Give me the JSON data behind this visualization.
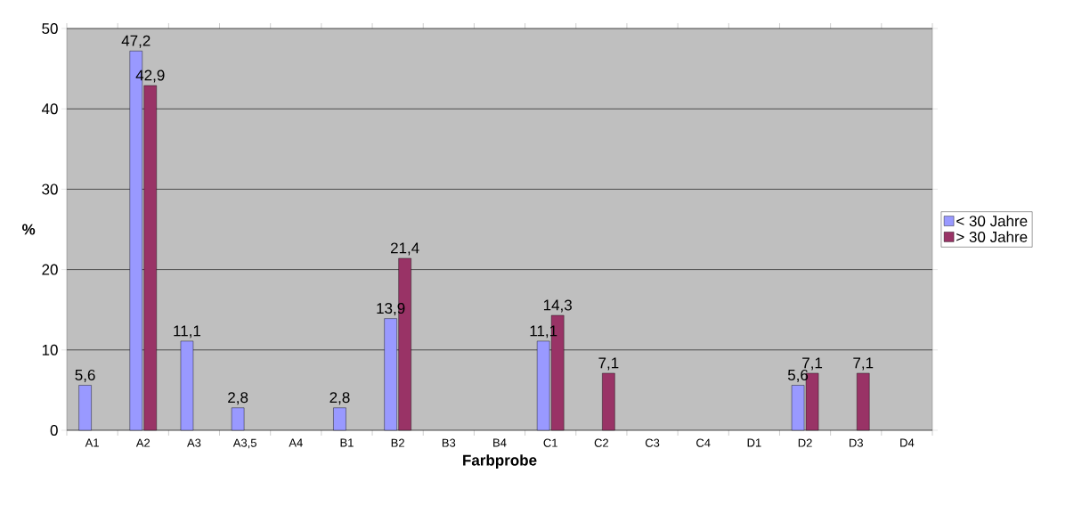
{
  "chart_data": {
    "type": "bar",
    "xlabel": "Farbprobe",
    "ylabel": "%",
    "categories": [
      "A1",
      "A2",
      "A3",
      "A3,5",
      "A4",
      "B1",
      "B2",
      "B3",
      "B4",
      "C1",
      "C2",
      "C3",
      "C4",
      "D1",
      "D2",
      "D3",
      "D4"
    ],
    "series": [
      {
        "name": "< 30 Jahre",
        "color": "#9999ff",
        "values": [
          5.6,
          47.2,
          11.1,
          2.8,
          null,
          2.8,
          13.9,
          null,
          null,
          11.1,
          null,
          null,
          null,
          null,
          5.6,
          null,
          null
        ],
        "value_labels": [
          "5,6",
          "47,2",
          "11,1",
          "2,8",
          null,
          "2,8",
          "13,9",
          null,
          null,
          "11,1",
          null,
          null,
          null,
          null,
          "5,6",
          null,
          null
        ]
      },
      {
        "name": "> 30 Jahre",
        "color": "#993366",
        "values": [
          null,
          42.9,
          null,
          null,
          null,
          null,
          21.4,
          null,
          null,
          14.3,
          7.1,
          null,
          null,
          null,
          7.1,
          7.1,
          null
        ],
        "value_labels": [
          null,
          "42,9",
          null,
          null,
          null,
          null,
          "21,4",
          null,
          null,
          "14,3",
          "7,1",
          null,
          null,
          null,
          "7,1",
          "7,1",
          null
        ]
      }
    ],
    "ylim": [
      0,
      50
    ],
    "yticks": [
      0,
      10,
      20,
      30,
      40,
      50
    ],
    "grid": "y",
    "legend": "right"
  }
}
